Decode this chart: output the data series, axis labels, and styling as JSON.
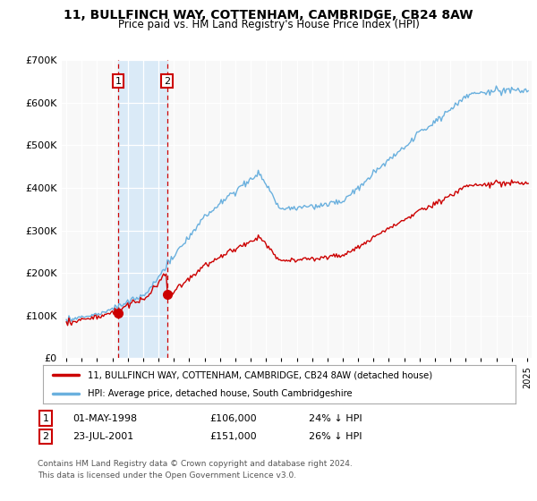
{
  "title": "11, BULLFINCH WAY, COTTENHAM, CAMBRIDGE, CB24 8AW",
  "subtitle": "Price paid vs. HM Land Registry's House Price Index (HPI)",
  "legend_line1": "11, BULLFINCH WAY, COTTENHAM, CAMBRIDGE, CB24 8AW (detached house)",
  "legend_line2": "HPI: Average price, detached house, South Cambridgeshire",
  "table_row1": [
    "1",
    "01-MAY-1998",
    "£106,000",
    "24% ↓ HPI"
  ],
  "table_row2": [
    "2",
    "23-JUL-2001",
    "£151,000",
    "26% ↓ HPI"
  ],
  "footnote": "Contains HM Land Registry data © Crown copyright and database right 2024.\nThis data is licensed under the Open Government Licence v3.0.",
  "sale1_date_num": 1998.37,
  "sale1_price": 106000,
  "sale2_date_num": 2001.56,
  "sale2_price": 151000,
  "hpi_color": "#6ab0de",
  "price_color": "#cc0000",
  "vline_color": "#cc0000",
  "highlight_color": "#daeaf7",
  "ylim": [
    0,
    700000
  ],
  "yticks": [
    0,
    100000,
    200000,
    300000,
    400000,
    500000,
    600000,
    700000
  ],
  "xlim_start": 1994.7,
  "xlim_end": 2025.3,
  "background_color": "#ffffff",
  "plot_bg_color": "#f8f8f8"
}
